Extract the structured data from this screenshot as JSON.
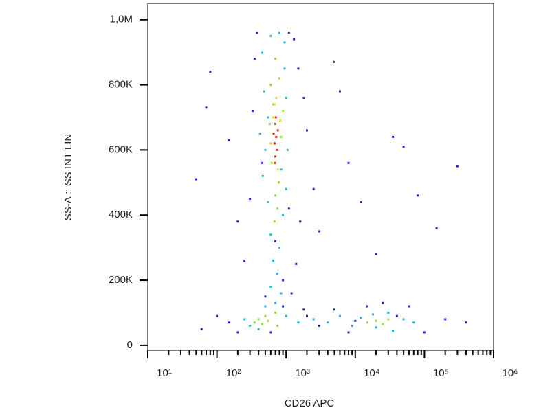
{
  "chart_data": {
    "type": "scatter",
    "x_label": "CD26 APC",
    "y_label": "SS-A :: SS INT LIN",
    "xscale": "log",
    "xlim": [
      10,
      1000000
    ],
    "xticks": [
      {
        "value": 10,
        "label": "10¹"
      },
      {
        "value": 100,
        "label": "10²"
      },
      {
        "value": 1000,
        "label": "10³"
      },
      {
        "value": 10000,
        "label": "10⁴"
      },
      {
        "value": 100000,
        "label": "10⁵"
      },
      {
        "value": 1000000,
        "label": "10⁶"
      }
    ],
    "ylim": [
      -15000,
      1050000
    ],
    "yticks": [
      0,
      {
        "value": 200000,
        "label": "200K"
      },
      {
        "value": 400000,
        "label": "400K"
      },
      {
        "value": 600000,
        "label": "600K"
      },
      {
        "value": 800000,
        "label": "800K"
      },
      {
        "value": 1000000,
        "label": "1,0M"
      }
    ],
    "series": [
      {
        "color": "#1a2bd8",
        "x": [
          80,
          70,
          50,
          150,
          200,
          250,
          300,
          330,
          350,
          380,
          1100,
          1300,
          1500,
          1800,
          2000,
          2500,
          1600,
          1400,
          1200,
          3000,
          5000,
          6000,
          8000,
          12000,
          20000,
          35000,
          50000,
          80000,
          150000,
          300000,
          2000,
          3000,
          5000,
          8000,
          15000,
          25000,
          60000,
          100000,
          200000,
          400000,
          150,
          100,
          200,
          60,
          500,
          900,
          700,
          450,
          1100,
          900,
          600,
          1800,
          40000,
          10000
        ],
        "y": [
          840000,
          730000,
          510000,
          630000,
          380000,
          260000,
          450000,
          720000,
          880000,
          960000,
          960000,
          940000,
          850000,
          760000,
          660000,
          480000,
          380000,
          250000,
          160000,
          350000,
          870000,
          780000,
          560000,
          440000,
          280000,
          640000,
          610000,
          460000,
          360000,
          550000,
          90000,
          60000,
          110000,
          40000,
          120000,
          130000,
          120000,
          40000,
          80000,
          70000,
          70000,
          90000,
          40000,
          50000,
          150000,
          200000,
          320000,
          560000,
          420000,
          120000,
          40000,
          110000,
          90000,
          75000
        ]
      },
      {
        "color": "#1fb8e0",
        "x": [
          450,
          600,
          800,
          950,
          480,
          1000,
          420,
          1050,
          460,
          1000,
          550,
          900,
          600,
          800,
          650,
          750,
          600,
          850,
          700,
          500,
          1000,
          300,
          250,
          400,
          1500,
          2500,
          4000,
          6000,
          9000,
          12000,
          18000,
          30000,
          50000,
          70000,
          20000,
          35000,
          550,
          950,
          500,
          850
        ],
        "y": [
          900000,
          950000,
          960000,
          930000,
          780000,
          760000,
          650000,
          600000,
          520000,
          480000,
          440000,
          400000,
          340000,
          300000,
          260000,
          220000,
          180000,
          160000,
          130000,
          120000,
          90000,
          60000,
          80000,
          50000,
          70000,
          80000,
          70000,
          90000,
          60000,
          85000,
          95000,
          100000,
          80000,
          70000,
          55000,
          45000,
          700000,
          850000,
          600000,
          540000
        ]
      },
      {
        "color": "#8fe03a",
        "x": [
          700,
          800,
          600,
          650,
          900,
          580,
          850,
          620,
          780,
          700,
          750,
          680,
          400,
          450,
          500,
          350,
          550,
          20000,
          25000,
          30000,
          15000,
          700,
          750
        ],
        "y": [
          880000,
          820000,
          800000,
          740000,
          720000,
          680000,
          640000,
          560000,
          500000,
          460000,
          420000,
          380000,
          80000,
          65000,
          90000,
          70000,
          75000,
          75000,
          65000,
          80000,
          70000,
          100000,
          60000
        ]
      },
      {
        "color": "#e8d420",
        "x": [
          720,
          650,
          820,
          760,
          600,
          680
        ],
        "y": [
          760000,
          700000,
          690000,
          540000,
          620000,
          740000
        ]
      },
      {
        "color": "#e02a10",
        "x": [
          700,
          720,
          680,
          740,
          700,
          660,
          760,
          710,
          690
        ],
        "y": [
          680000,
          640000,
          620000,
          600000,
          580000,
          650000,
          660000,
          700000,
          560000
        ]
      }
    ]
  }
}
